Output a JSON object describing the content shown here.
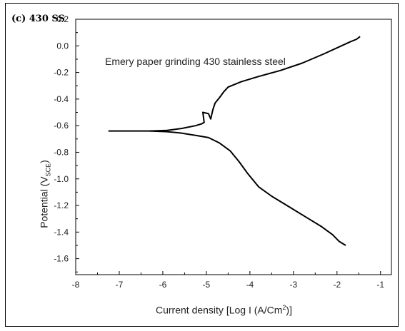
{
  "panel_label": "(c) 430 SS",
  "chart_data": {
    "type": "line",
    "annotation": "Emery paper grinding 430 stainless steel",
    "xlabel": "Current density [Log I (A/Cm2)]",
    "xlabel_parts": {
      "before": "Current density [Log I (A/Cm",
      "sup": "2",
      "after": ")]"
    },
    "ylabel": "Potential (VSCE)",
    "ylabel_parts": {
      "before": "Potential (V",
      "sub": "SCE",
      "after": ")"
    },
    "xlim": [
      -8,
      -0.75
    ],
    "ylim": [
      -1.72,
      0.2
    ],
    "xticks": [
      -8,
      -7,
      -6,
      -5,
      -4,
      -3,
      -2,
      -1
    ],
    "xtick_labels": [
      "-8",
      "-7",
      "-6",
      "-5",
      "-4",
      "-3",
      "-2",
      "-1"
    ],
    "yticks": [
      0.2,
      0.0,
      -0.2,
      -0.4,
      -0.6,
      -0.8,
      -1.0,
      -1.2,
      -1.4,
      -1.6
    ],
    "ytick_labels": [
      "0.2",
      "0.0",
      "-0.2",
      "-0.4",
      "-0.6",
      "-0.8",
      "-1.0",
      "-1.2",
      "-1.4",
      "-1.6"
    ],
    "grid": false,
    "line_color": "#000000",
    "series": [
      {
        "x": [
          -7.25,
          -6.7,
          -6.3,
          -5.9,
          -5.55,
          -5.25,
          -5.1,
          -5.05,
          -5.08,
          -4.95,
          -4.9,
          -4.85,
          -4.8,
          -4.7,
          -4.6,
          -4.5,
          -4.2,
          -3.8,
          -3.3,
          -2.8,
          -2.3,
          -1.9,
          -1.7,
          -1.55,
          -1.47
        ],
        "y": [
          -0.64,
          -0.64,
          -0.64,
          -0.635,
          -0.62,
          -0.6,
          -0.585,
          -0.575,
          -0.5,
          -0.51,
          -0.55,
          -0.48,
          -0.43,
          -0.39,
          -0.345,
          -0.31,
          -0.27,
          -0.23,
          -0.185,
          -0.13,
          -0.06,
          0.0,
          0.03,
          0.05,
          0.07
        ]
      },
      {
        "x": [
          -6.3,
          -5.9,
          -5.6,
          -5.2,
          -4.95,
          -4.7,
          -4.45,
          -4.25,
          -4.05,
          -3.8,
          -3.5,
          -3.1,
          -2.7,
          -2.35,
          -2.1,
          -1.95,
          -1.85,
          -1.8
        ],
        "y": [
          -0.64,
          -0.645,
          -0.655,
          -0.675,
          -0.69,
          -0.73,
          -0.79,
          -0.87,
          -0.96,
          -1.06,
          -1.13,
          -1.21,
          -1.29,
          -1.36,
          -1.42,
          -1.47,
          -1.49,
          -1.5
        ]
      }
    ]
  }
}
